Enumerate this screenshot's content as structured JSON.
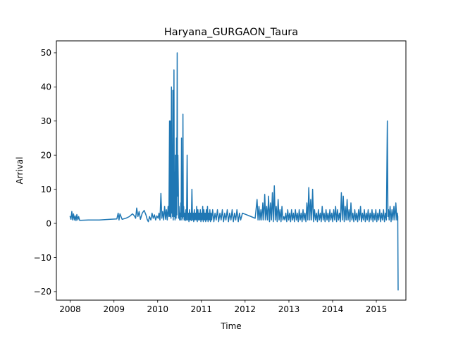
{
  "chart_data": {
    "type": "line",
    "title": "Haryana_GURGAON_Taura",
    "xlabel": "Time",
    "ylabel": "Arrival",
    "x_type": "date",
    "xlim": [
      "2007-09-08",
      "2015-09-05"
    ],
    "ylim": [
      -22.5,
      53.5
    ],
    "xticks": [
      {
        "value": "2008-01-01",
        "label": "2008"
      },
      {
        "value": "2009-01-01",
        "label": "2009"
      },
      {
        "value": "2010-01-01",
        "label": "2010"
      },
      {
        "value": "2011-01-01",
        "label": "2011"
      },
      {
        "value": "2012-01-01",
        "label": "2012"
      },
      {
        "value": "2013-01-01",
        "label": "2013"
      },
      {
        "value": "2014-01-01",
        "label": "2014"
      },
      {
        "value": "2015-01-01",
        "label": "2015"
      }
    ],
    "yticks": [
      {
        "value": -20,
        "label": "−20"
      },
      {
        "value": -10,
        "label": "−10"
      },
      {
        "value": 0,
        "label": "0"
      },
      {
        "value": 10,
        "label": "10"
      },
      {
        "value": 20,
        "label": "20"
      },
      {
        "value": 30,
        "label": "30"
      },
      {
        "value": 40,
        "label": "40"
      },
      {
        "value": 50,
        "label": "50"
      }
    ],
    "grid": false,
    "series": [
      {
        "color": "#1f77b4",
        "x": [
          "2008-01-01",
          "2008-01-08",
          "2008-01-15",
          "2008-01-22",
          "2008-01-29",
          "2008-02-05",
          "2008-02-12",
          "2008-02-19",
          "2008-02-26",
          "2008-03-05",
          "2008-03-12",
          "2008-03-20",
          "2008-06-01",
          "2008-09-01",
          "2008-12-01",
          "2009-01-25",
          "2009-02-05",
          "2009-02-12",
          "2009-02-20",
          "2009-03-10",
          "2009-04-10",
          "2009-05-10",
          "2009-06-05",
          "2009-06-20",
          "2009-07-01",
          "2009-07-10",
          "2009-07-20",
          "2009-07-30",
          "2009-08-10",
          "2009-08-25",
          "2009-09-10",
          "2009-09-25",
          "2009-10-05",
          "2009-10-15",
          "2009-10-25",
          "2009-11-05",
          "2009-11-15",
          "2009-11-25",
          "2009-12-05",
          "2009-12-15",
          "2009-12-25",
          "2010-01-05",
          "2010-01-12",
          "2010-01-20",
          "2010-01-28",
          "2010-02-05",
          "2010-02-12",
          "2010-02-20",
          "2010-02-28",
          "2010-03-08",
          "2010-03-15",
          "2010-03-22",
          "2010-03-29",
          "2010-04-05",
          "2010-04-10",
          "2010-04-14",
          "2010-04-18",
          "2010-04-22",
          "2010-04-26",
          "2010-04-30",
          "2010-05-02",
          "2010-05-05",
          "2010-05-08",
          "2010-05-11",
          "2010-05-14",
          "2010-05-17",
          "2010-05-20",
          "2010-05-23",
          "2010-05-26",
          "2010-05-29",
          "2010-06-01",
          "2010-06-04",
          "2010-06-07",
          "2010-06-10",
          "2010-06-13",
          "2010-06-16",
          "2010-06-19",
          "2010-06-22",
          "2010-06-25",
          "2010-06-28",
          "2010-07-01",
          "2010-07-04",
          "2010-07-07",
          "2010-07-10",
          "2010-07-13",
          "2010-07-16",
          "2010-07-19",
          "2010-07-22",
          "2010-07-25",
          "2010-07-28",
          "2010-07-31",
          "2010-08-03",
          "2010-08-06",
          "2010-08-10",
          "2010-08-15",
          "2010-08-20",
          "2010-08-25",
          "2010-08-30",
          "2010-09-04",
          "2010-09-09",
          "2010-09-14",
          "2010-09-19",
          "2010-09-24",
          "2010-09-29",
          "2010-10-04",
          "2010-10-09",
          "2010-10-14",
          "2010-10-19",
          "2010-10-24",
          "2010-10-29",
          "2010-11-03",
          "2010-11-08",
          "2010-11-13",
          "2010-11-18",
          "2010-11-23",
          "2010-11-28",
          "2010-12-03",
          "2010-12-08",
          "2010-12-13",
          "2010-12-18",
          "2010-12-23",
          "2010-12-28",
          "2011-01-02",
          "2011-01-07",
          "2011-01-12",
          "2011-01-17",
          "2011-01-22",
          "2011-01-27",
          "2011-02-01",
          "2011-02-06",
          "2011-02-11",
          "2011-02-16",
          "2011-02-21",
          "2011-02-26",
          "2011-03-03",
          "2011-03-08",
          "2011-03-13",
          "2011-03-18",
          "2011-03-23",
          "2011-03-28",
          "2011-04-05",
          "2011-04-15",
          "2011-04-25",
          "2011-05-05",
          "2011-05-15",
          "2011-05-25",
          "2011-06-05",
          "2011-06-15",
          "2011-06-25",
          "2011-07-05",
          "2011-07-15",
          "2011-07-25",
          "2011-08-05",
          "2011-08-15",
          "2011-08-25",
          "2011-09-05",
          "2011-09-15",
          "2011-09-25",
          "2011-10-05",
          "2011-10-15",
          "2011-10-25",
          "2011-11-05",
          "2011-11-15",
          "2011-11-25",
          "2011-12-10",
          "2012-01-15",
          "2012-02-20",
          "2012-03-25",
          "2012-04-10",
          "2012-04-18",
          "2012-04-26",
          "2012-05-04",
          "2012-05-12",
          "2012-05-20",
          "2012-05-28",
          "2012-06-05",
          "2012-06-13",
          "2012-06-21",
          "2012-06-29",
          "2012-07-07",
          "2012-07-15",
          "2012-07-23",
          "2012-07-31",
          "2012-08-08",
          "2012-08-16",
          "2012-08-24",
          "2012-09-01",
          "2012-09-09",
          "2012-09-17",
          "2012-09-25",
          "2012-10-03",
          "2012-10-11",
          "2012-10-19",
          "2012-10-27",
          "2012-11-04",
          "2012-11-12",
          "2012-11-20",
          "2012-11-28",
          "2012-12-06",
          "2012-12-14",
          "2012-12-22",
          "2012-12-30",
          "2013-01-07",
          "2013-01-15",
          "2013-01-23",
          "2013-01-31",
          "2013-02-08",
          "2013-02-16",
          "2013-02-24",
          "2013-03-04",
          "2013-03-12",
          "2013-03-20",
          "2013-03-28",
          "2013-04-05",
          "2013-04-13",
          "2013-04-21",
          "2013-04-29",
          "2013-05-07",
          "2013-05-15",
          "2013-05-23",
          "2013-05-31",
          "2013-06-08",
          "2013-06-16",
          "2013-06-24",
          "2013-07-02",
          "2013-07-10",
          "2013-07-18",
          "2013-07-26",
          "2013-08-03",
          "2013-08-11",
          "2013-08-19",
          "2013-08-27",
          "2013-09-04",
          "2013-09-12",
          "2013-09-20",
          "2013-09-28",
          "2013-10-06",
          "2013-10-14",
          "2013-10-22",
          "2013-10-30",
          "2013-11-07",
          "2013-11-15",
          "2013-11-23",
          "2013-12-01",
          "2013-12-09",
          "2013-12-17",
          "2013-12-25",
          "2014-01-02",
          "2014-01-10",
          "2014-01-18",
          "2014-01-26",
          "2014-02-03",
          "2014-02-11",
          "2014-02-19",
          "2014-02-27",
          "2014-03-07",
          "2014-03-15",
          "2014-03-23",
          "2014-03-31",
          "2014-04-08",
          "2014-04-16",
          "2014-04-24",
          "2014-05-02",
          "2014-05-10",
          "2014-05-18",
          "2014-05-26",
          "2014-06-03",
          "2014-06-11",
          "2014-06-19",
          "2014-06-27",
          "2014-07-05",
          "2014-07-13",
          "2014-07-21",
          "2014-07-29",
          "2014-08-06",
          "2014-08-14",
          "2014-08-22",
          "2014-08-30",
          "2014-09-07",
          "2014-09-15",
          "2014-09-23",
          "2014-10-01",
          "2014-10-09",
          "2014-10-17",
          "2014-10-25",
          "2014-11-02",
          "2014-11-10",
          "2014-11-18",
          "2014-11-26",
          "2014-12-04",
          "2014-12-12",
          "2014-12-20",
          "2014-12-28",
          "2015-01-05",
          "2015-01-13",
          "2015-01-21",
          "2015-01-29",
          "2015-02-06",
          "2015-02-14",
          "2015-02-22",
          "2015-03-02",
          "2015-03-10",
          "2015-03-18",
          "2015-03-26",
          "2015-04-03",
          "2015-04-08",
          "2015-04-13",
          "2015-04-18",
          "2015-04-26",
          "2015-05-04",
          "2015-05-12",
          "2015-05-20",
          "2015-05-28",
          "2015-06-05",
          "2015-06-13",
          "2015-06-21",
          "2015-06-25",
          "2015-06-29",
          "2015-07-02"
        ],
        "y": [
          2,
          1.2,
          3.5,
          1.0,
          2.8,
          1.0,
          2.2,
          0.8,
          2.6,
          1.0,
          2.0,
          0.9,
          1.0,
          1.0,
          1.2,
          1.3,
          3.0,
          1.0,
          2.8,
          1.2,
          1.5,
          2.0,
          2.8,
          2.2,
          1.5,
          4.5,
          2.0,
          3.5,
          1.2,
          3.0,
          3.8,
          2.5,
          1.2,
          0.5,
          2.0,
          1.0,
          3.0,
          1.5,
          2.5,
          1.0,
          2.2,
          1.5,
          3.0,
          1.0,
          8.8,
          1.5,
          3.5,
          1.0,
          5.0,
          1.2,
          4.0,
          1.0,
          5.0,
          2.0,
          30,
          2.0,
          30,
          1.5,
          40,
          3.0,
          15,
          2.0,
          39,
          1.0,
          10,
          45,
          2.0,
          15,
          1.0,
          20,
          3.0,
          1.5,
          25,
          2.5,
          50,
          8.0,
          20,
          12,
          1.5,
          5.0,
          2.0,
          1.0,
          3.0,
          1.0,
          6.0,
          2.0,
          25,
          1.0,
          4.0,
          1.5,
          32,
          2.0,
          5.0,
          1.0,
          3.0,
          0.8,
          4.0,
          1.0,
          20,
          1.0,
          3.0,
          0.5,
          4.0,
          1.0,
          3.0,
          0.8,
          10,
          1.0,
          3.0,
          0.5,
          4.0,
          1.0,
          3.0,
          1.0,
          5.0,
          0.5,
          4.0,
          1.0,
          3.0,
          1.0,
          4.0,
          0.5,
          3.0,
          1.0,
          5.0,
          0.5,
          4.0,
          1.0,
          3.0,
          0.5,
          4.0,
          1.0,
          5.0,
          0.5,
          3.0,
          1.0,
          4.0,
          0.5,
          3.0,
          1.0,
          4.0,
          0.5,
          3.0,
          1.0,
          4.0,
          0.5,
          3.0,
          1.0,
          4.0,
          0.5,
          3.0,
          1.0,
          4.0,
          0.5,
          3.0,
          1.0,
          4.0,
          0.5,
          3.0,
          1.0,
          4.0,
          0.5,
          3.0,
          1.0,
          3.0,
          2.5,
          2.0,
          1.5,
          7.0,
          1.0,
          5.0,
          1.0,
          4.0,
          1.0,
          6.0,
          1.0,
          8.5,
          1.0,
          5.0,
          1.0,
          8.0,
          0.5,
          6.0,
          1.0,
          9.0,
          0.5,
          11,
          1.0,
          5.0,
          0.5,
          7.0,
          1.0,
          4.0,
          0.5,
          5.0,
          1.0,
          2.0,
          1.0,
          3.0,
          0.5,
          4.0,
          1.0,
          3.0,
          0.5,
          4.0,
          1.0,
          3.0,
          0.5,
          4.0,
          1.0,
          3.0,
          0.5,
          4.0,
          1.0,
          3.0,
          0.5,
          4.0,
          1.0,
          3.0,
          0.5,
          6.0,
          1.0,
          10.5,
          1.0,
          7.0,
          1.0,
          10,
          0.5,
          4.0,
          1.0,
          3.0,
          0.5,
          4.0,
          1.0,
          3.0,
          0.5,
          5.0,
          1.0,
          3.0,
          0.5,
          4.0,
          1.0,
          3.0,
          0.5,
          4.0,
          1.0,
          3.0,
          0.5,
          4.0,
          1.0,
          5.0,
          0.5,
          4.0,
          1.0,
          3.0,
          0.5,
          9.0,
          1.0,
          8.0,
          0.5,
          5.0,
          1.0,
          7.0,
          1.0,
          4.0,
          0.5,
          6.0,
          1.0,
          3.0,
          0.5,
          4.0,
          1.0,
          3.0,
          0.5,
          4.0,
          1.0,
          5.0,
          0.5,
          3.0,
          1.0,
          4.0,
          0.5,
          3.0,
          1.0,
          4.0,
          0.5,
          3.0,
          1.0,
          4.0,
          0.5,
          3.0,
          1.0,
          4.0,
          0.5,
          3.0,
          1.0,
          4.0,
          0.5,
          3.0,
          1.0,
          4.0,
          0.5,
          3.0,
          1.0,
          30,
          2.0,
          4.0,
          1.0,
          5.0,
          0.5,
          4.0,
          1.0,
          5.0,
          1.0,
          6.0,
          1.0,
          3.0,
          2.0,
          -19.5
        ]
      }
    ]
  }
}
